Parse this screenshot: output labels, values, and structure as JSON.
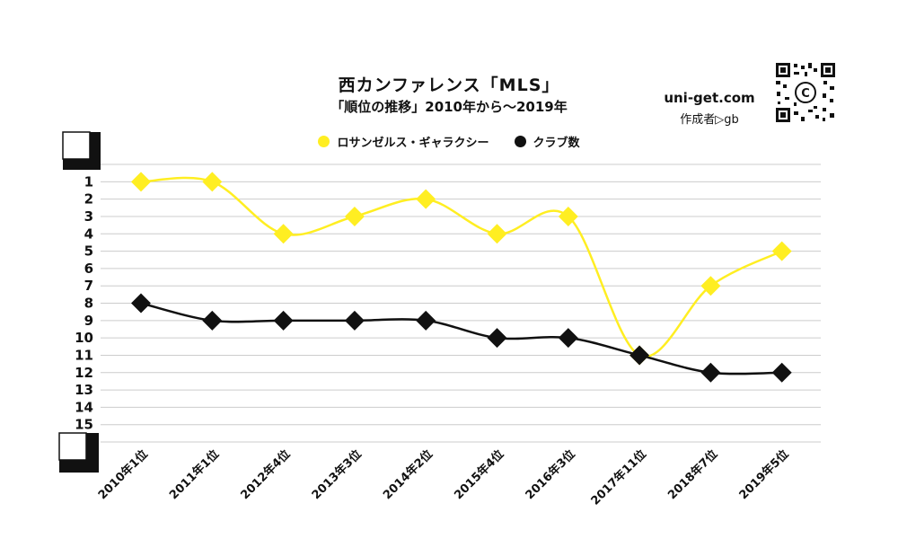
{
  "header": {
    "title": "西カンファレンス「MLS」",
    "subtitle": "「順位の推移」2010年から～2019年",
    "site": "uni-get.com",
    "author": "作成者▷gb"
  },
  "colors": {
    "galaxy": "#ffee22",
    "clubs": "#111111",
    "grid": "#cccccc"
  },
  "chart_data": {
    "type": "line",
    "categories": [
      "2010年1位",
      "2011年1位",
      "2012年4位",
      "2013年3位",
      "2014年2位",
      "2015年4位",
      "2016年3位",
      "2017年11位",
      "2018年7位",
      "2019年5位"
    ],
    "series": [
      {
        "name": "ロサンゼルス・ギャラクシー",
        "values": [
          1,
          1,
          4,
          3,
          2,
          4,
          3,
          11,
          7,
          5
        ]
      },
      {
        "name": "クラブ数",
        "values": [
          8,
          9,
          9,
          9,
          9,
          10,
          10,
          11,
          12,
          12
        ]
      }
    ],
    "yticks": [
      1,
      2,
      3,
      4,
      5,
      6,
      7,
      8,
      9,
      10,
      11,
      12,
      13,
      14,
      15
    ],
    "ylim": [
      0,
      16
    ],
    "y_inverted": true,
    "grid": true,
    "legend_position": "top"
  }
}
